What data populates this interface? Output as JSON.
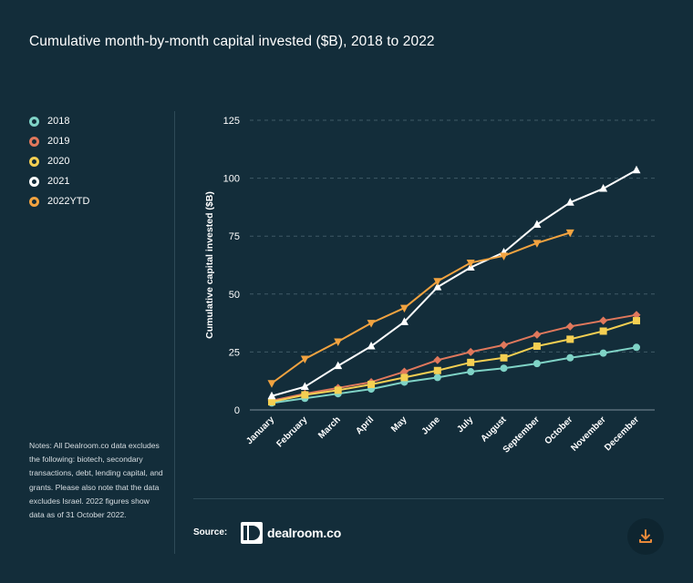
{
  "title": "Cumulative month-by-month capital invested ($B), 2018 to 2022",
  "notes": "Notes: All Dealroom.co data excludes the following: biotech, secondary transactions, debt, lending capital, and grants. Please also note that the data excludes Israel. 2022 figures show data as of 31 October 2022.",
  "source": {
    "label": "Source:",
    "logo_text": "dealroom.co"
  },
  "icons": {
    "logo": "dealroom-logo-icon",
    "download": "download-icon"
  },
  "colors": {
    "background": "#132d3a",
    "2018": "#7fd3c6",
    "2019": "#e0785c",
    "2020": "#f4cf52",
    "2021": "#ffffff",
    "2022YTD": "#f2a340",
    "download_accent": "#e8893a"
  },
  "chart_data": {
    "type": "line",
    "title": "Cumulative month-by-month capital invested ($B), 2018 to 2022",
    "xlabel": "",
    "ylabel": "Cumulative capital invested ($B)",
    "ylim": [
      0,
      125
    ],
    "yticks": [
      0,
      25,
      50,
      75,
      100,
      125
    ],
    "grid": "horizontal dashed",
    "legend": "left",
    "categories": [
      "January",
      "February",
      "March",
      "April",
      "May",
      "June",
      "July",
      "August",
      "September",
      "October",
      "November",
      "December"
    ],
    "series": [
      {
        "name": "2018",
        "marker": "circle",
        "color": "#7fd3c6",
        "values": [
          3,
          5,
          7,
          9,
          12,
          14,
          16.5,
          18,
          20,
          22.5,
          24.5,
          27
        ]
      },
      {
        "name": "2019",
        "marker": "diamond",
        "color": "#e0785c",
        "values": [
          4,
          7,
          9.5,
          12,
          16.5,
          21.5,
          25,
          28,
          32.5,
          36,
          38.5,
          41
        ]
      },
      {
        "name": "2020",
        "marker": "square",
        "color": "#f4cf52",
        "values": [
          3.5,
          6.5,
          8.5,
          11,
          14,
          17,
          20.5,
          22.5,
          27.5,
          30.5,
          34,
          38.5
        ]
      },
      {
        "name": "2021",
        "marker": "triangle-up",
        "color": "#ffffff",
        "values": [
          6,
          10,
          19,
          27.5,
          38,
          53,
          61.5,
          68,
          80,
          89.5,
          95.5,
          103.5
        ]
      },
      {
        "name": "2022YTD",
        "marker": "triangle-down",
        "color": "#f2a340",
        "values": [
          11.5,
          22,
          29.5,
          37.5,
          44,
          55.5,
          63.5,
          66.5,
          72,
          76.5,
          null,
          null
        ]
      }
    ]
  }
}
